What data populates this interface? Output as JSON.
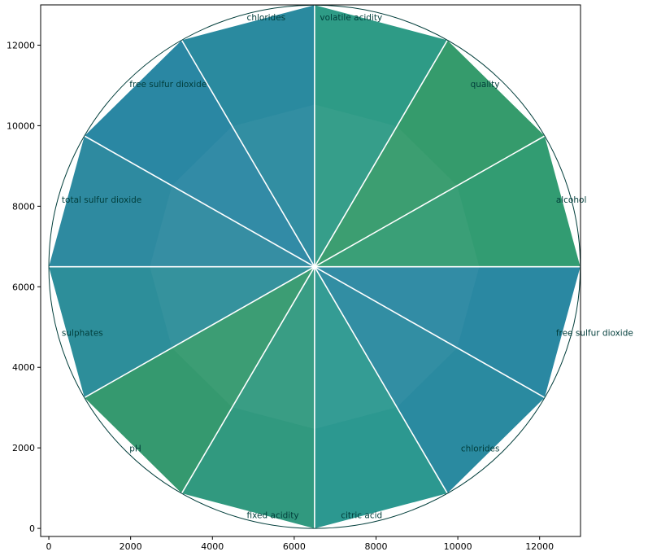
{
  "chart_data": {
    "type": "radar",
    "xlim": [
      -200,
      13000
    ],
    "ylim": [
      -200,
      13000
    ],
    "x_ticks": [
      0,
      2000,
      4000,
      6000,
      8000,
      10000,
      12000
    ],
    "y_ticks": [
      0,
      2000,
      4000,
      6000,
      8000,
      10000,
      12000
    ],
    "x_tick_labels": [
      "0",
      "2000",
      "4000",
      "6000",
      "8000",
      "10000",
      "12000"
    ],
    "y_tick_labels": [
      "0",
      "2000",
      "4000",
      "6000",
      "8000",
      "10000",
      "12000"
    ],
    "center": [
      6497,
      6497
    ],
    "radius": 6497,
    "segment_angles_deg": [
      90,
      60,
      30,
      0,
      -30,
      -60,
      -90,
      -120,
      -150,
      180,
      150,
      120
    ],
    "segments": [
      {
        "label": "volatile acidity",
        "color": "#2e9b86"
      },
      {
        "label": "quality",
        "color": "#359b6c"
      },
      {
        "label": "alcohol",
        "color": "#329c72"
      },
      {
        "label": "free sulfur dioxide",
        "color": "#2a88a2"
      },
      {
        "label": "chlorides",
        "color": "#2a8aa0"
      },
      {
        "label": "citric acid",
        "color": "#2c9890"
      },
      {
        "label": "fixed acidity",
        "color": "#31997f"
      },
      {
        "label": "pH",
        "color": "#35996f"
      },
      {
        "label": "sulphates",
        "color": "#2d8e9a"
      },
      {
        "label": "total sulfur dioxide",
        "color": "#2e8aa0"
      },
      {
        "label": "free sulfur dioxide",
        "color": "#2a87a3"
      },
      {
        "label": "chlorides",
        "color": "#2a8a9f"
      }
    ],
    "label_color": "#003d3a",
    "circle_color": "#003d3a",
    "spoke_color": "#ffffff"
  }
}
